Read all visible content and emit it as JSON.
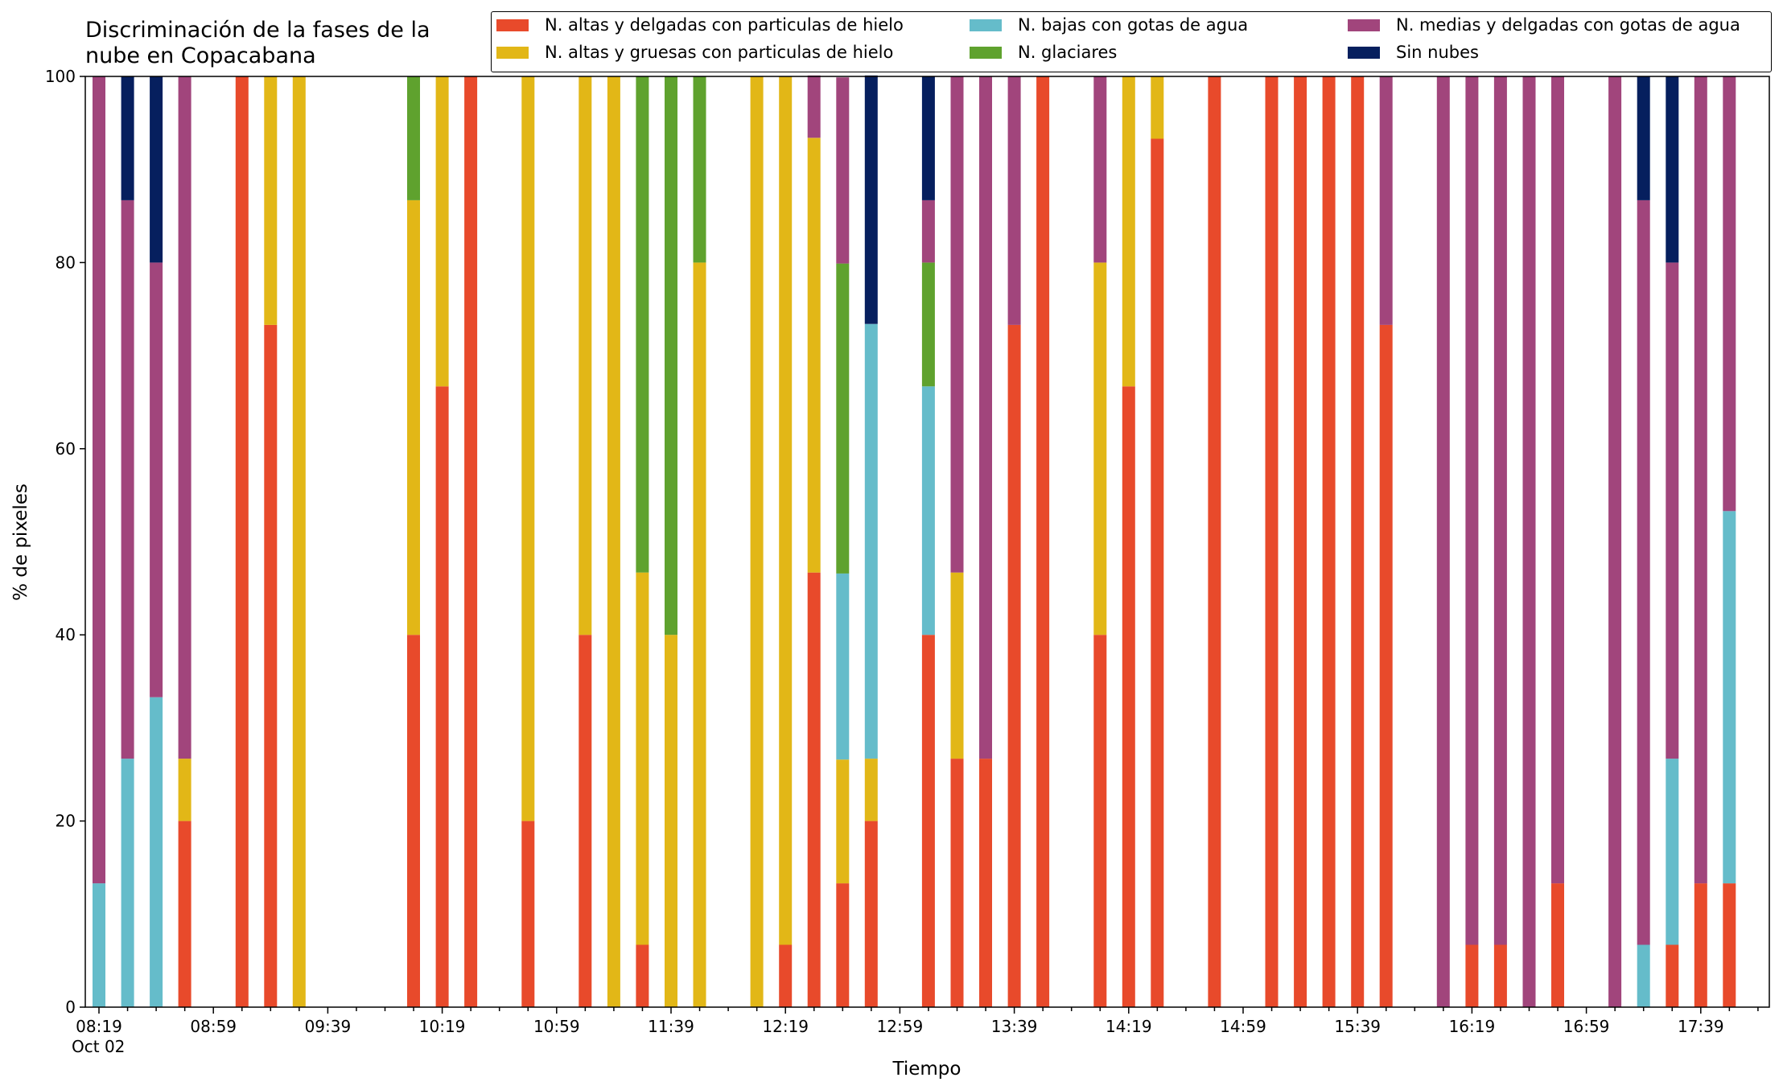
{
  "title_line1": "Discriminación de la fases de la",
  "title_line2": "nube en Copacabana",
  "chart_data": {
    "type": "bar",
    "stacked": true,
    "xlabel": "Tiempo",
    "ylabel": "% de pixeles",
    "ylim": [
      0,
      100
    ],
    "yticks": [
      0,
      20,
      40,
      60,
      80,
      100
    ],
    "xtick_labels": [
      "08:19",
      "08:59",
      "09:39",
      "10:19",
      "10:59",
      "11:39",
      "12:19",
      "12:59",
      "13:39",
      "14:19",
      "14:59",
      "15:39",
      "16:19",
      "16:59",
      "17:39"
    ],
    "x_date_label": "Oct 02",
    "legend_position": "top-right",
    "series": [
      {
        "name": "N. altas y delgadas con particulas de hielo",
        "color": "#E84A2B"
      },
      {
        "name": "N. altas y gruesas con particulas de hielo",
        "color": "#E2B717"
      },
      {
        "name": "N. bajas con gotas de agua",
        "color": "#65BCCA"
      },
      {
        "name": "N. glaciares",
        "color": "#5FA22E"
      },
      {
        "name": "N. medias y delgadas con gotas de agua",
        "color": "#A1457C"
      },
      {
        "name": "Sin nubes",
        "color": "#061F5E"
      }
    ],
    "bars": [
      {
        "time": "08:19",
        "values": [
          0,
          0,
          13.3,
          0,
          86.7,
          0
        ]
      },
      {
        "time": "08:29",
        "values": [
          0,
          0,
          26.7,
          0,
          60,
          13.3
        ]
      },
      {
        "time": "08:39",
        "values": [
          0,
          0,
          33.3,
          0,
          46.7,
          20
        ]
      },
      {
        "time": "08:49",
        "values": [
          20,
          6.7,
          0,
          0,
          73.3,
          0
        ]
      },
      {
        "time": "09:09",
        "values": [
          100,
          0,
          0,
          0,
          0,
          0
        ]
      },
      {
        "time": "09:19",
        "values": [
          73.3,
          26.7,
          0,
          0,
          0,
          0
        ]
      },
      {
        "time": "09:29",
        "values": [
          0,
          100,
          0,
          0,
          0,
          0
        ]
      },
      {
        "time": "10:09",
        "values": [
          40,
          46.7,
          0,
          13.3,
          0,
          0
        ]
      },
      {
        "time": "10:19",
        "values": [
          66.7,
          33.3,
          0,
          0,
          0,
          0
        ]
      },
      {
        "time": "10:29",
        "values": [
          100,
          0,
          0,
          0,
          0,
          0
        ]
      },
      {
        "time": "10:49",
        "values": [
          20,
          80,
          0,
          0,
          0,
          0
        ]
      },
      {
        "time": "11:09",
        "values": [
          40,
          60,
          0,
          0,
          0,
          0
        ]
      },
      {
        "time": "11:19",
        "values": [
          0,
          100,
          0,
          0,
          0,
          0
        ]
      },
      {
        "time": "11:29",
        "values": [
          6.7,
          40,
          0,
          53.3,
          0,
          0
        ]
      },
      {
        "time": "11:39",
        "values": [
          0,
          40,
          0,
          60,
          0,
          0
        ]
      },
      {
        "time": "11:49",
        "values": [
          0,
          80,
          0,
          20,
          0,
          0
        ]
      },
      {
        "time": "12:09",
        "values": [
          0,
          100,
          0,
          0,
          0,
          0
        ]
      },
      {
        "time": "12:19",
        "values": [
          6.7,
          93.3,
          0,
          0,
          0,
          0
        ]
      },
      {
        "time": "12:29",
        "values": [
          46.7,
          46.7,
          0,
          0,
          6.7,
          0
        ]
      },
      {
        "time": "12:39",
        "values": [
          13.3,
          13.3,
          20,
          33.3,
          20,
          0
        ]
      },
      {
        "time": "12:49",
        "values": [
          20,
          6.7,
          46.7,
          0,
          0,
          26.7
        ]
      },
      {
        "time": "13:09",
        "values": [
          40,
          0,
          26.7,
          13.3,
          6.7,
          13.3
        ]
      },
      {
        "time": "13:19",
        "values": [
          26.7,
          20,
          0,
          0,
          53.3,
          0
        ]
      },
      {
        "time": "13:29",
        "values": [
          26.7,
          0,
          0,
          0,
          73.3,
          0
        ]
      },
      {
        "time": "13:39",
        "values": [
          73.3,
          0,
          0,
          0,
          26.7,
          0
        ]
      },
      {
        "time": "13:49",
        "values": [
          100,
          0,
          0,
          0,
          0,
          0
        ]
      },
      {
        "time": "14:09",
        "values": [
          40,
          40,
          0,
          0,
          20,
          0
        ]
      },
      {
        "time": "14:19",
        "values": [
          66.7,
          33.3,
          0,
          0,
          0,
          0
        ]
      },
      {
        "time": "14:29",
        "values": [
          93.3,
          6.7,
          0,
          0,
          0,
          0
        ]
      },
      {
        "time": "14:49",
        "values": [
          100,
          0,
          0,
          0,
          0,
          0
        ]
      },
      {
        "time": "15:09",
        "values": [
          100,
          0,
          0,
          0,
          0,
          0
        ]
      },
      {
        "time": "15:19",
        "values": [
          100,
          0,
          0,
          0,
          0,
          0
        ]
      },
      {
        "time": "15:29",
        "values": [
          100,
          0,
          0,
          0,
          0,
          0
        ]
      },
      {
        "time": "15:39",
        "values": [
          100,
          0,
          0,
          0,
          0,
          0
        ]
      },
      {
        "time": "15:49",
        "values": [
          73.3,
          0,
          0,
          0,
          26.7,
          0
        ]
      },
      {
        "time": "16:09",
        "values": [
          0,
          0,
          0,
          0,
          100,
          0
        ]
      },
      {
        "time": "16:19",
        "values": [
          6.7,
          0,
          0,
          0,
          93.3,
          0
        ]
      },
      {
        "time": "16:29",
        "values": [
          6.7,
          0,
          0,
          0,
          93.3,
          0
        ]
      },
      {
        "time": "16:39",
        "values": [
          0,
          0,
          0,
          0,
          100,
          0
        ]
      },
      {
        "time": "16:49",
        "values": [
          13.3,
          0,
          0,
          0,
          86.7,
          0
        ]
      },
      {
        "time": "17:09",
        "values": [
          0,
          0,
          0,
          0,
          100,
          0
        ]
      },
      {
        "time": "17:19",
        "values": [
          0,
          0,
          6.7,
          0,
          80,
          13.3
        ]
      },
      {
        "time": "17:29",
        "values": [
          6.7,
          0,
          20,
          0,
          53.3,
          20
        ]
      },
      {
        "time": "17:39",
        "values": [
          13.3,
          0,
          0,
          0,
          86.7,
          0
        ]
      },
      {
        "time": "17:49",
        "values": [
          13.3,
          0,
          40,
          0,
          46.7,
          0
        ]
      }
    ]
  }
}
